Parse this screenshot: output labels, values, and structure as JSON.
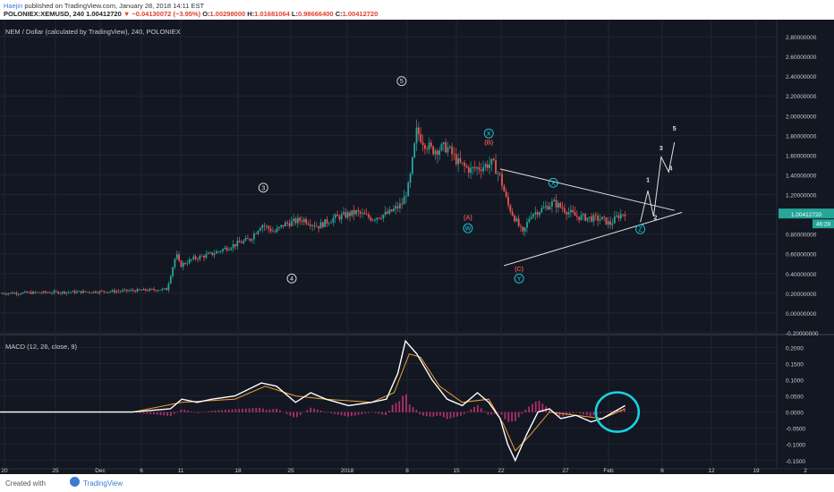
{
  "header": {
    "author": "Haejin",
    "published": " published on TradingView.com, January 28, 2018 14:11 EST",
    "symbol_line": "POLONIEX:XEMUSD, 240",
    "last": "1.00412720",
    "change": "▼ −0.04130072 (−3.95%)",
    "o_label": "O:",
    "o": "1.00298000",
    "h_label": "H:",
    "h": "1.01681064",
    "l_label": "L:",
    "l": "0.98666400",
    "c_label": "C:",
    "c": "1.00412720"
  },
  "footer": {
    "created_with": "Created with",
    "brand": "TradingView"
  },
  "colors": {
    "bg": "#131722",
    "up": "#26a69a",
    "down": "#ef5350",
    "grid": "#1e2433",
    "macd": "#ffffff",
    "signal": "#f0a030",
    "hist": "#b0306a",
    "highlight": "#19d3e0",
    "label": "#cccccc",
    "wave_red": "#e05050",
    "wave_cyan": "#19d3e0"
  },
  "chart_data": [
    {
      "type": "candlestick",
      "title": "NEM / Dollar (calculated by TradingView), 240, POLONIEX",
      "ylim": [
        -0.2,
        2.9
      ],
      "yticks": [
        "2.80000000",
        "2.60000000",
        "2.40000000",
        "2.20000000",
        "2.00000000",
        "1.80000000",
        "1.60000000",
        "1.40000000",
        "1.20000000",
        "1.00000000",
        "0.80000000",
        "0.60000000",
        "0.40000000",
        "0.20000000",
        "0.00000000",
        "-0.20000000"
      ],
      "xticks": [
        "20",
        "25",
        "Dec",
        "6",
        "11",
        "18",
        "25",
        "2018",
        "8",
        "15",
        "22",
        "27",
        "Feb",
        "6",
        "12",
        "19",
        "2"
      ],
      "last_price_label": "1.00412720",
      "countdown_label": "46:28",
      "price_path": [
        [
          0,
          0.2
        ],
        [
          30,
          0.21
        ],
        [
          60,
          0.22
        ],
        [
          88,
          0.24
        ],
        [
          93,
          0.6
        ],
        [
          95,
          0.48
        ],
        [
          102,
          0.55
        ],
        [
          112,
          0.6
        ],
        [
          122,
          0.68
        ],
        [
          132,
          0.75
        ],
        [
          138,
          0.9
        ],
        [
          145,
          0.82
        ],
        [
          150,
          0.9
        ],
        [
          160,
          0.95
        ],
        [
          168,
          0.88
        ],
        [
          176,
          0.96
        ],
        [
          188,
          1.02
        ],
        [
          196,
          0.96
        ],
        [
          205,
          1.01
        ],
        [
          212,
          1.1
        ],
        [
          216,
          1.3
        ],
        [
          220,
          1.85
        ],
        [
          223,
          1.75
        ],
        [
          228,
          1.65
        ],
        [
          236,
          1.68
        ],
        [
          242,
          1.52
        ],
        [
          248,
          1.45
        ],
        [
          254,
          1.48
        ],
        [
          260,
          1.52
        ],
        [
          264,
          1.38
        ],
        [
          268,
          1.1
        ],
        [
          272,
          0.95
        ],
        [
          276,
          0.8
        ],
        [
          280,
          1.0
        ],
        [
          286,
          1.05
        ],
        [
          292,
          1.12
        ],
        [
          298,
          1.05
        ],
        [
          304,
          0.98
        ],
        [
          312,
          0.96
        ],
        [
          318,
          0.95
        ],
        [
          322,
          0.9
        ],
        [
          326,
          0.98
        ],
        [
          330,
          1.02
        ]
      ],
      "wave_labels": [
        {
          "t": "5",
          "x": 212,
          "y": 2.35,
          "c": "w",
          "circ": true
        },
        {
          "t": "3",
          "x": 139,
          "y": 1.27,
          "c": "w",
          "circ": true
        },
        {
          "t": "4",
          "x": 154,
          "y": 0.35,
          "c": "w",
          "circ": true
        },
        {
          "t": "X",
          "x": 258,
          "y": 1.82,
          "c": "c",
          "circ": true
        },
        {
          "t": "(B)",
          "x": 258,
          "y": 1.73,
          "c": "r",
          "circ": false
        },
        {
          "t": "(A)",
          "x": 247,
          "y": 0.97,
          "c": "r",
          "circ": false
        },
        {
          "t": "W",
          "x": 247,
          "y": 0.86,
          "c": "c",
          "circ": true
        },
        {
          "t": "(C)",
          "x": 274,
          "y": 0.45,
          "c": "r",
          "circ": false
        },
        {
          "t": "Y",
          "x": 274,
          "y": 0.35,
          "c": "c",
          "circ": true
        },
        {
          "t": "X",
          "x": 292,
          "y": 1.32,
          "c": "c",
          "circ": true
        },
        {
          "t": "Z",
          "x": 338,
          "y": 0.85,
          "c": "c",
          "circ": true
        },
        {
          "t": "1",
          "x": 342,
          "y": 1.35,
          "c": "w",
          "circ": false
        },
        {
          "t": "2",
          "x": 346,
          "y": 0.97,
          "c": "w",
          "circ": false
        },
        {
          "t": "3",
          "x": 349,
          "y": 1.67,
          "c": "w",
          "circ": false
        },
        {
          "t": "4",
          "x": 354,
          "y": 1.47,
          "c": "w",
          "circ": false
        },
        {
          "t": "5",
          "x": 356,
          "y": 1.87,
          "c": "w",
          "circ": false
        }
      ],
      "trendlines": [
        [
          [
            264,
            1.46
          ],
          [
            356,
            1.04
          ]
        ],
        [
          [
            266,
            0.48
          ],
          [
            360,
            1.02
          ]
        ]
      ],
      "projection": [
        [
          338,
          0.92
        ],
        [
          342,
          1.24
        ],
        [
          345,
          0.98
        ],
        [
          349,
          1.58
        ],
        [
          353,
          1.43
        ],
        [
          356,
          1.73
        ]
      ]
    },
    {
      "type": "line",
      "title": "MACD (12, 26, close, 9)",
      "ylim": [
        -0.17,
        0.24
      ],
      "yticks": [
        "0.2000",
        "0.1500",
        "0.1000",
        "0.0500",
        "0.0000",
        "-0.0500",
        "-0.1000",
        "-0.1500"
      ],
      "macd_path": [
        [
          0,
          0
        ],
        [
          40,
          0
        ],
        [
          70,
          0
        ],
        [
          90,
          0.01
        ],
        [
          96,
          0.04
        ],
        [
          104,
          0.03
        ],
        [
          112,
          0.04
        ],
        [
          124,
          0.05
        ],
        [
          138,
          0.09
        ],
        [
          146,
          0.08
        ],
        [
          156,
          0.03
        ],
        [
          164,
          0.06
        ],
        [
          172,
          0.04
        ],
        [
          184,
          0.02
        ],
        [
          196,
          0.03
        ],
        [
          204,
          0.04
        ],
        [
          210,
          0.12
        ],
        [
          214,
          0.22
        ],
        [
          220,
          0.18
        ],
        [
          228,
          0.1
        ],
        [
          236,
          0.04
        ],
        [
          244,
          0.02
        ],
        [
          252,
          0.06
        ],
        [
          258,
          0.03
        ],
        [
          264,
          -0.02
        ],
        [
          268,
          -0.1
        ],
        [
          272,
          -0.15
        ],
        [
          278,
          -0.07
        ],
        [
          284,
          0.0
        ],
        [
          290,
          0.01
        ],
        [
          296,
          -0.02
        ],
        [
          304,
          -0.01
        ],
        [
          312,
          -0.03
        ],
        [
          318,
          -0.02
        ],
        [
          324,
          0.0
        ],
        [
          330,
          0.02
        ]
      ],
      "signal_path": [
        [
          0,
          0
        ],
        [
          70,
          0
        ],
        [
          96,
          0.03
        ],
        [
          124,
          0.04
        ],
        [
          140,
          0.08
        ],
        [
          156,
          0.05
        ],
        [
          172,
          0.04
        ],
        [
          196,
          0.03
        ],
        [
          208,
          0.06
        ],
        [
          216,
          0.18
        ],
        [
          222,
          0.17
        ],
        [
          232,
          0.08
        ],
        [
          244,
          0.03
        ],
        [
          258,
          0.04
        ],
        [
          266,
          -0.04
        ],
        [
          272,
          -0.12
        ],
        [
          280,
          -0.07
        ],
        [
          290,
          0.0
        ],
        [
          304,
          -0.01
        ],
        [
          318,
          -0.02
        ],
        [
          330,
          0.01
        ]
      ],
      "highlight_circle": {
        "x": 323,
        "y": 0.0
      }
    }
  ]
}
